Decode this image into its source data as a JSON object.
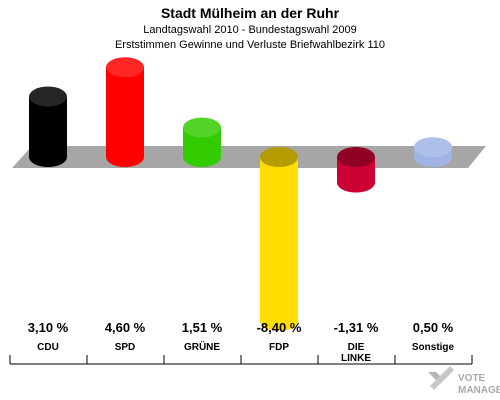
{
  "chart_data": {
    "type": "bar",
    "title": "Stadt Mülheim an der Ruhr",
    "subtitle_line1": "Landtagswahl 2010 - Bundestagswahl 2009",
    "subtitle_line2": "Erststimmen Gewinne und Verluste Briefwahlbezirk 110",
    "categories": [
      "CDU",
      "SPD",
      "GRÜNE",
      "FDP",
      "DIE LINKE",
      "Sonstige"
    ],
    "category_lines": [
      [
        "CDU"
      ],
      [
        "SPD"
      ],
      [
        "GRÜNE"
      ],
      [
        "FDP"
      ],
      [
        "DIE",
        "LINKE"
      ],
      [
        "Sonstige"
      ]
    ],
    "values": [
      3.1,
      4.6,
      1.51,
      -8.4,
      -1.31,
      0.5
    ],
    "value_labels": [
      "3,10 %",
      "4,60 %",
      "1,51 %",
      "-8,40 %",
      "-1,31 %",
      "0,50 %"
    ],
    "colors": [
      "#000000",
      "#ff0000",
      "#33cc00",
      "#ffdd00",
      "#cc0033",
      "#a0b4e6"
    ],
    "ylim": [
      -9,
      5
    ],
    "grid": false
  },
  "brand": {
    "name_line1": "VOTE",
    "name_line2": "MANAGER",
    "icon": "vote-manager-logo"
  }
}
